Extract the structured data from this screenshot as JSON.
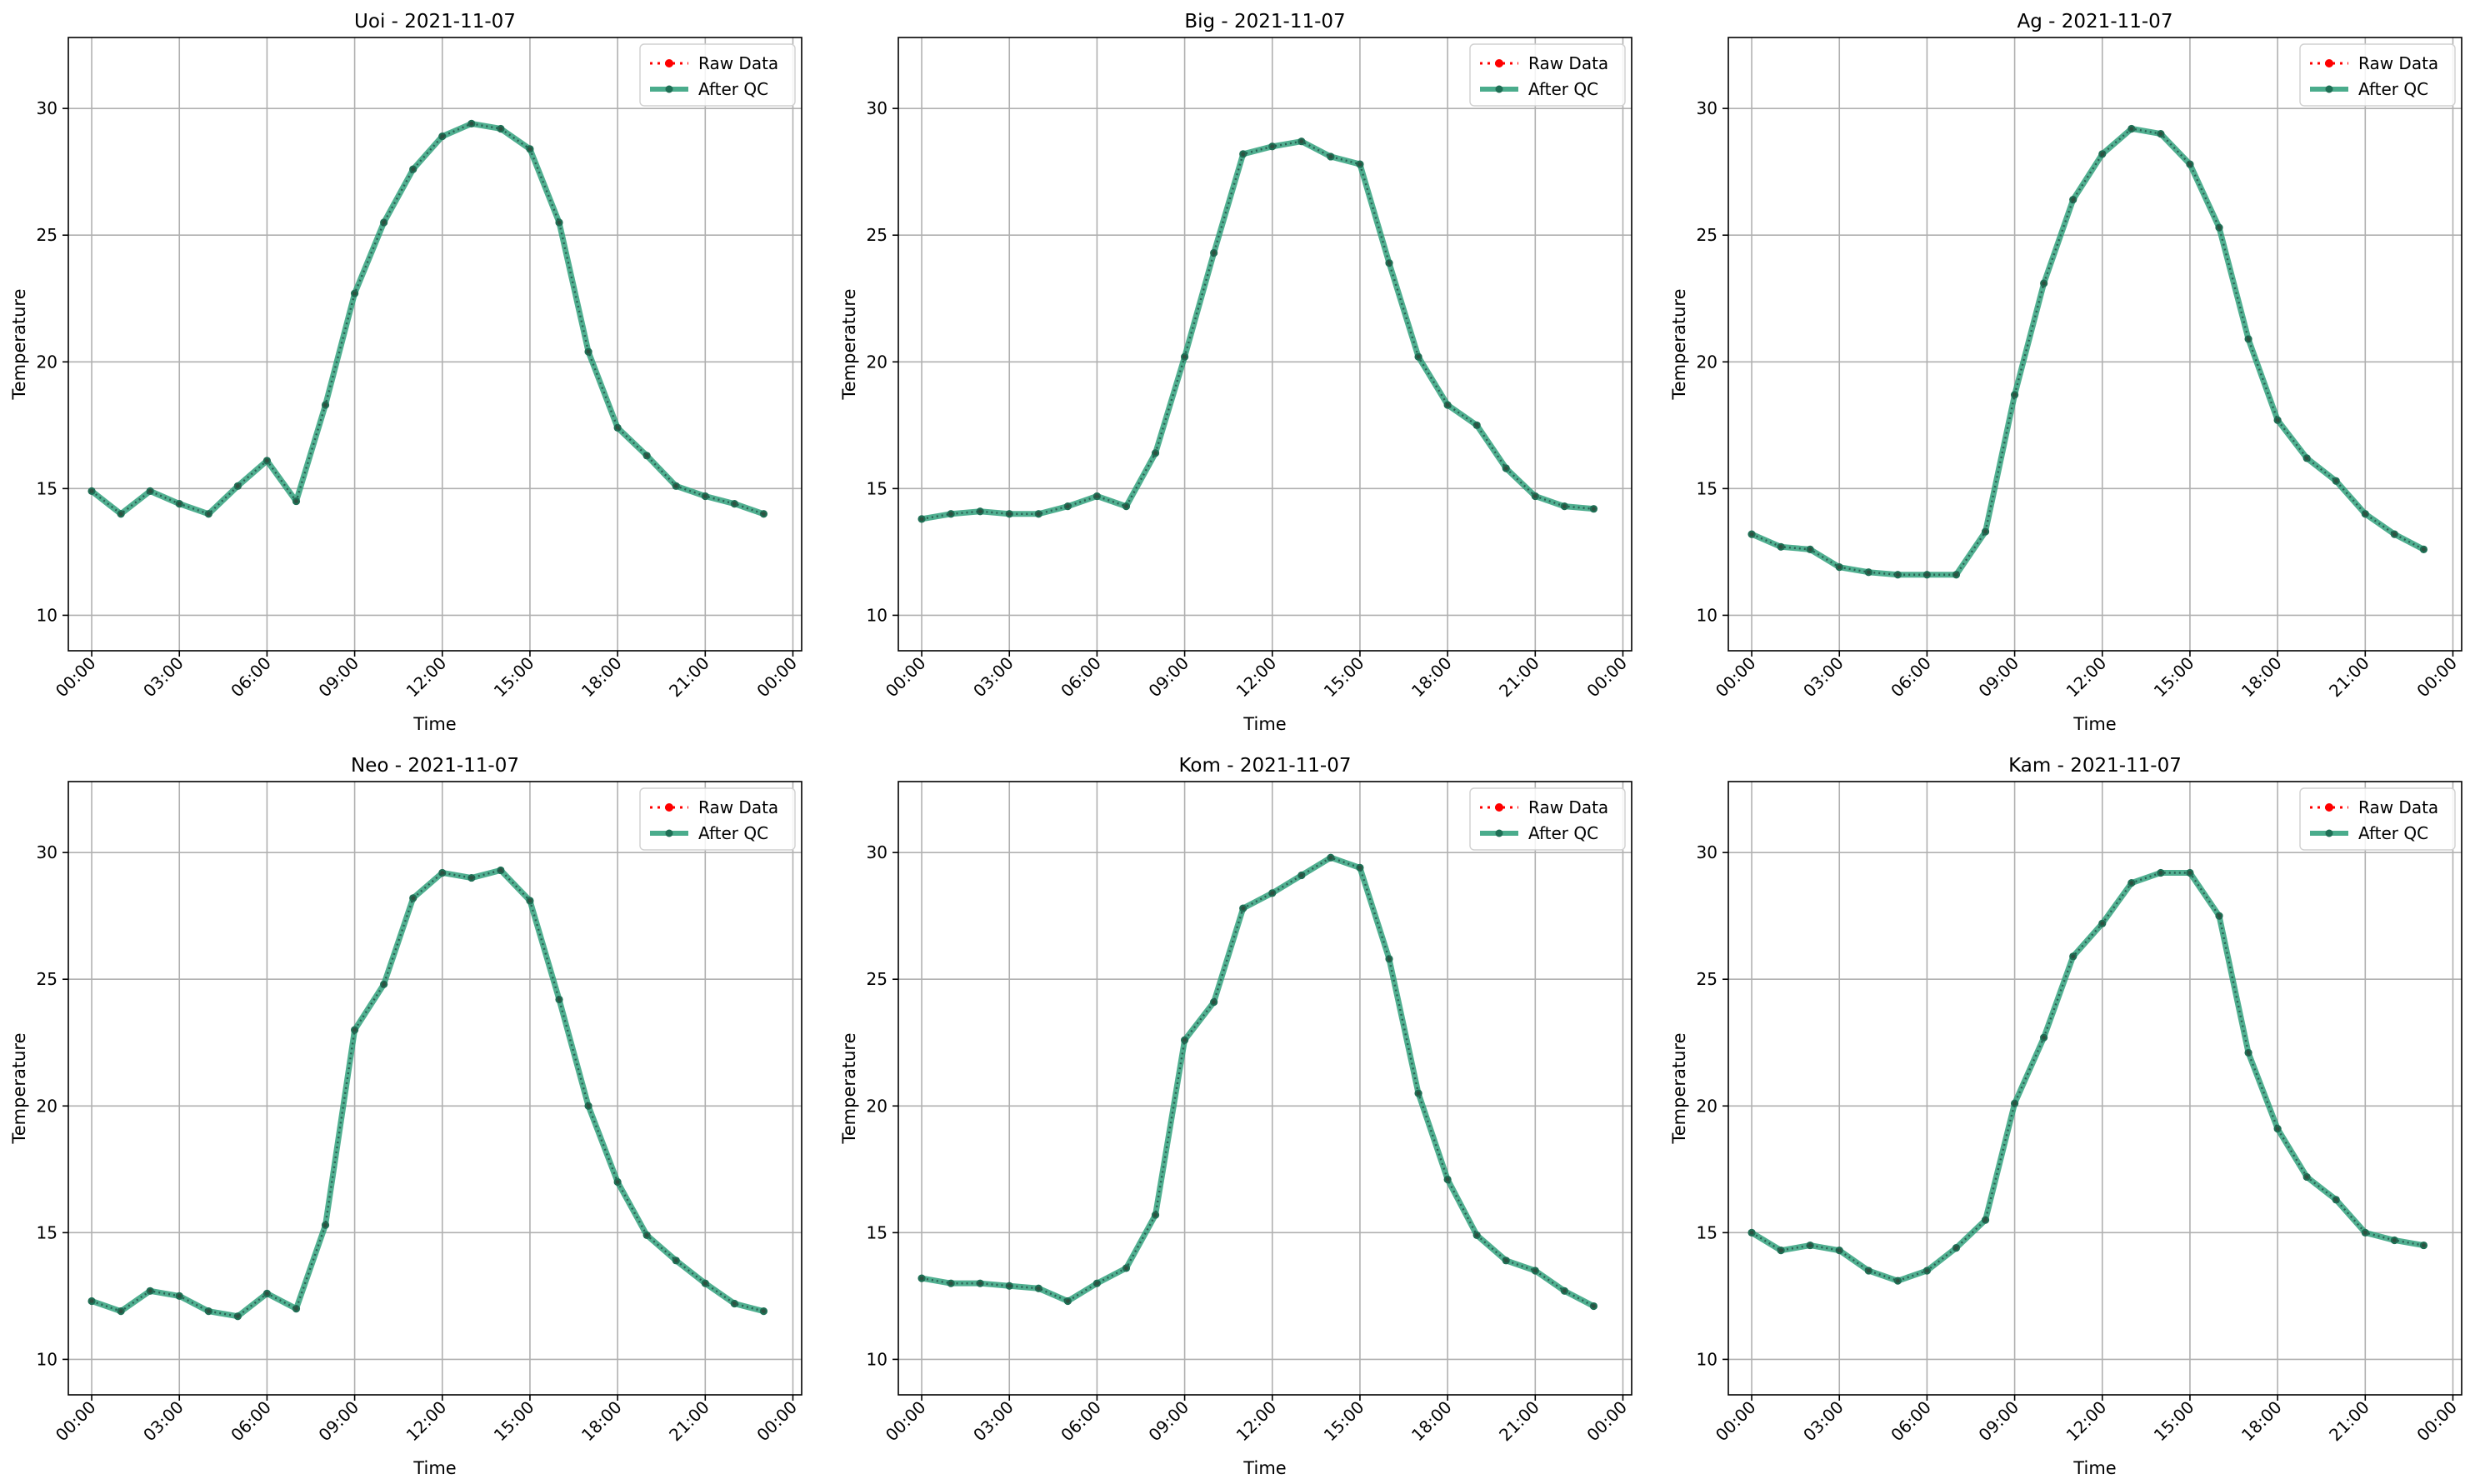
{
  "figure": {
    "panels": [
      {
        "title": "Uoi - 2021-11-07"
      },
      {
        "title": "Big - 2021-11-07"
      },
      {
        "title": "Ag - 2021-11-07"
      },
      {
        "title": "Neo - 2021-11-07"
      },
      {
        "title": "Kom - 2021-11-07"
      },
      {
        "title": "Kam - 2021-11-07"
      }
    ],
    "colors": {
      "raw": "#ff0000",
      "qc": "#2a9d78",
      "qc_marker": "#1f6f55",
      "grid": "#b0b0b0"
    }
  },
  "chart_data": [
    {
      "type": "line",
      "title": "Uoi - 2021-11-07",
      "xlabel": "Time",
      "ylabel": "Temperature",
      "x": [
        "00:00",
        "01:00",
        "02:00",
        "03:00",
        "04:00",
        "05:00",
        "06:00",
        "07:00",
        "08:00",
        "09:00",
        "10:00",
        "11:00",
        "12:00",
        "13:00",
        "14:00",
        "15:00",
        "16:00",
        "17:00",
        "18:00",
        "19:00",
        "20:00",
        "21:00",
        "22:00",
        "23:00"
      ],
      "xtick_labels": [
        "00:00",
        "03:00",
        "06:00",
        "09:00",
        "12:00",
        "15:00",
        "18:00",
        "21:00",
        "00:00"
      ],
      "yticks": [
        10,
        15,
        20,
        25,
        30
      ],
      "ylim": [
        8.6,
        32.8
      ],
      "grid": true,
      "legend": "top-right",
      "series": [
        {
          "name": "Raw Data",
          "values": [
            14.9,
            14.0,
            14.9,
            14.4,
            14.0,
            15.1,
            16.1,
            14.5,
            18.3,
            22.7,
            25.5,
            27.6,
            28.9,
            29.4,
            29.2,
            28.4,
            25.5,
            20.4,
            17.4,
            16.3,
            15.1,
            14.7,
            14.4,
            14.0
          ]
        },
        {
          "name": "After QC",
          "values": [
            14.9,
            14.0,
            14.9,
            14.4,
            14.0,
            15.1,
            16.1,
            14.5,
            18.3,
            22.7,
            25.5,
            27.6,
            28.9,
            29.4,
            29.2,
            28.4,
            25.5,
            20.4,
            17.4,
            16.3,
            15.1,
            14.7,
            14.4,
            14.0
          ]
        }
      ]
    },
    {
      "type": "line",
      "title": "Big - 2021-11-07",
      "xlabel": "Time",
      "ylabel": "Temperature",
      "x": [
        "00:00",
        "01:00",
        "02:00",
        "03:00",
        "04:00",
        "05:00",
        "06:00",
        "07:00",
        "08:00",
        "09:00",
        "10:00",
        "11:00",
        "12:00",
        "13:00",
        "14:00",
        "15:00",
        "16:00",
        "17:00",
        "18:00",
        "19:00",
        "20:00",
        "21:00",
        "22:00",
        "23:00"
      ],
      "xtick_labels": [
        "00:00",
        "03:00",
        "06:00",
        "09:00",
        "12:00",
        "15:00",
        "18:00",
        "21:00",
        "00:00"
      ],
      "yticks": [
        10,
        15,
        20,
        25,
        30
      ],
      "ylim": [
        8.6,
        32.8
      ],
      "grid": true,
      "legend": "top-right",
      "series": [
        {
          "name": "Raw Data",
          "values": [
            13.8,
            14.0,
            14.1,
            14.0,
            14.0,
            14.3,
            14.7,
            14.3,
            16.4,
            20.2,
            24.3,
            28.2,
            28.5,
            28.7,
            28.1,
            27.8,
            23.9,
            20.2,
            18.3,
            17.5,
            15.8,
            14.7,
            14.3,
            14.2
          ]
        },
        {
          "name": "After QC",
          "values": [
            13.8,
            14.0,
            14.1,
            14.0,
            14.0,
            14.3,
            14.7,
            14.3,
            16.4,
            20.2,
            24.3,
            28.2,
            28.5,
            28.7,
            28.1,
            27.8,
            23.9,
            20.2,
            18.3,
            17.5,
            15.8,
            14.7,
            14.3,
            14.2
          ]
        }
      ]
    },
    {
      "type": "line",
      "title": "Ag - 2021-11-07",
      "xlabel": "Time",
      "ylabel": "Temperature",
      "x": [
        "00:00",
        "01:00",
        "02:00",
        "03:00",
        "04:00",
        "05:00",
        "06:00",
        "07:00",
        "08:00",
        "09:00",
        "10:00",
        "11:00",
        "12:00",
        "13:00",
        "14:00",
        "15:00",
        "16:00",
        "17:00",
        "18:00",
        "19:00",
        "20:00",
        "21:00",
        "22:00",
        "23:00"
      ],
      "xtick_labels": [
        "00:00",
        "03:00",
        "06:00",
        "09:00",
        "12:00",
        "15:00",
        "18:00",
        "21:00",
        "00:00"
      ],
      "yticks": [
        10,
        15,
        20,
        25,
        30
      ],
      "ylim": [
        8.6,
        32.8
      ],
      "grid": true,
      "legend": "top-right",
      "series": [
        {
          "name": "Raw Data",
          "values": [
            13.2,
            12.7,
            12.6,
            11.9,
            11.7,
            11.6,
            11.6,
            11.6,
            13.3,
            18.7,
            23.1,
            26.4,
            28.2,
            29.2,
            29.0,
            27.8,
            25.3,
            20.9,
            17.7,
            16.2,
            15.3,
            14.0,
            13.2,
            12.6
          ]
        },
        {
          "name": "After QC",
          "values": [
            13.2,
            12.7,
            12.6,
            11.9,
            11.7,
            11.6,
            11.6,
            11.6,
            13.3,
            18.7,
            23.1,
            26.4,
            28.2,
            29.2,
            29.0,
            27.8,
            25.3,
            20.9,
            17.7,
            16.2,
            15.3,
            14.0,
            13.2,
            12.6
          ]
        }
      ]
    },
    {
      "type": "line",
      "title": "Neo - 2021-11-07",
      "xlabel": "Time",
      "ylabel": "Temperature",
      "x": [
        "00:00",
        "01:00",
        "02:00",
        "03:00",
        "04:00",
        "05:00",
        "06:00",
        "07:00",
        "08:00",
        "09:00",
        "10:00",
        "11:00",
        "12:00",
        "13:00",
        "14:00",
        "15:00",
        "16:00",
        "17:00",
        "18:00",
        "19:00",
        "20:00",
        "21:00",
        "22:00",
        "23:00"
      ],
      "xtick_labels": [
        "00:00",
        "03:00",
        "06:00",
        "09:00",
        "12:00",
        "15:00",
        "18:00",
        "21:00",
        "00:00"
      ],
      "yticks": [
        10,
        15,
        20,
        25,
        30
      ],
      "ylim": [
        8.6,
        32.8
      ],
      "grid": true,
      "legend": "top-right",
      "series": [
        {
          "name": "Raw Data",
          "values": [
            12.3,
            11.9,
            12.7,
            12.5,
            11.9,
            11.7,
            12.6,
            12.0,
            15.3,
            23.0,
            24.8,
            28.2,
            29.2,
            29.0,
            29.3,
            28.1,
            24.2,
            20.0,
            17.0,
            14.9,
            13.9,
            13.0,
            12.2,
            11.9
          ]
        },
        {
          "name": "After QC",
          "values": [
            12.3,
            11.9,
            12.7,
            12.5,
            11.9,
            11.7,
            12.6,
            12.0,
            15.3,
            23.0,
            24.8,
            28.2,
            29.2,
            29.0,
            29.3,
            28.1,
            24.2,
            20.0,
            17.0,
            14.9,
            13.9,
            13.0,
            12.2,
            11.9
          ]
        }
      ]
    },
    {
      "type": "line",
      "title": "Kom - 2021-11-07",
      "xlabel": "Time",
      "ylabel": "Temperature",
      "x": [
        "00:00",
        "01:00",
        "02:00",
        "03:00",
        "04:00",
        "05:00",
        "06:00",
        "07:00",
        "08:00",
        "09:00",
        "10:00",
        "11:00",
        "12:00",
        "13:00",
        "14:00",
        "15:00",
        "16:00",
        "17:00",
        "18:00",
        "19:00",
        "20:00",
        "21:00",
        "22:00",
        "23:00"
      ],
      "xtick_labels": [
        "00:00",
        "03:00",
        "06:00",
        "09:00",
        "12:00",
        "15:00",
        "18:00",
        "21:00",
        "00:00"
      ],
      "yticks": [
        10,
        15,
        20,
        25,
        30
      ],
      "ylim": [
        8.6,
        32.8
      ],
      "grid": true,
      "legend": "top-right",
      "series": [
        {
          "name": "Raw Data",
          "values": [
            13.2,
            13.0,
            13.0,
            12.9,
            12.8,
            12.3,
            13.0,
            13.6,
            15.7,
            22.6,
            24.1,
            27.8,
            28.4,
            29.1,
            29.8,
            29.4,
            25.8,
            20.5,
            17.1,
            14.9,
            13.9,
            13.5,
            12.7,
            12.1
          ]
        },
        {
          "name": "After QC",
          "values": [
            13.2,
            13.0,
            13.0,
            12.9,
            12.8,
            12.3,
            13.0,
            13.6,
            15.7,
            22.6,
            24.1,
            27.8,
            28.4,
            29.1,
            29.8,
            29.4,
            25.8,
            20.5,
            17.1,
            14.9,
            13.9,
            13.5,
            12.7,
            12.1
          ]
        }
      ]
    },
    {
      "type": "line",
      "title": "Kam - 2021-11-07",
      "xlabel": "Time",
      "ylabel": "Temperature",
      "x": [
        "00:00",
        "01:00",
        "02:00",
        "03:00",
        "04:00",
        "05:00",
        "06:00",
        "07:00",
        "08:00",
        "09:00",
        "10:00",
        "11:00",
        "12:00",
        "13:00",
        "14:00",
        "15:00",
        "16:00",
        "17:00",
        "18:00",
        "19:00",
        "20:00",
        "21:00",
        "22:00",
        "23:00"
      ],
      "xtick_labels": [
        "00:00",
        "03:00",
        "06:00",
        "09:00",
        "12:00",
        "15:00",
        "18:00",
        "21:00",
        "00:00"
      ],
      "yticks": [
        10,
        15,
        20,
        25,
        30
      ],
      "ylim": [
        8.6,
        32.8
      ],
      "grid": true,
      "legend": "top-right",
      "series": [
        {
          "name": "Raw Data",
          "values": [
            15.0,
            14.3,
            14.5,
            14.3,
            13.5,
            13.1,
            13.5,
            14.4,
            15.5,
            20.1,
            22.7,
            25.9,
            27.2,
            28.8,
            29.2,
            29.2,
            27.5,
            22.1,
            19.1,
            17.2,
            16.3,
            15.0,
            14.7,
            14.5
          ]
        },
        {
          "name": "After QC",
          "values": [
            15.0,
            14.3,
            14.5,
            14.3,
            13.5,
            13.1,
            13.5,
            14.4,
            15.5,
            20.1,
            22.7,
            25.9,
            27.2,
            28.8,
            29.2,
            29.2,
            27.5,
            22.1,
            19.1,
            17.2,
            16.3,
            15.0,
            14.7,
            14.5
          ]
        }
      ]
    }
  ]
}
